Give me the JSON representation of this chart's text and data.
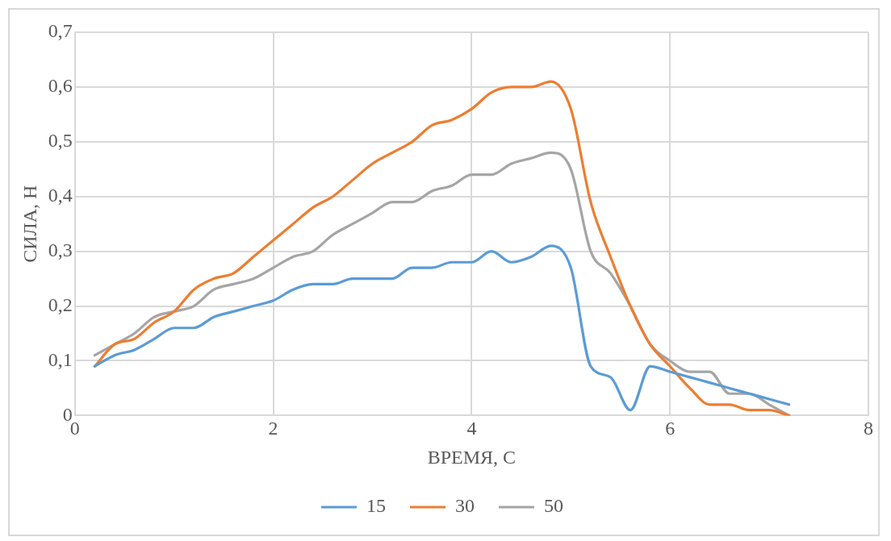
{
  "chart_data": {
    "type": "line",
    "xlabel": "ВРЕМЯ, С",
    "ylabel": "СИЛА, Н",
    "x": [
      0.2,
      0.4,
      0.6,
      0.8,
      1.0,
      1.2,
      1.4,
      1.6,
      1.8,
      2.0,
      2.2,
      2.4,
      2.6,
      2.8,
      3.0,
      3.2,
      3.4,
      3.6,
      3.8,
      4.0,
      4.2,
      4.4,
      4.6,
      4.8,
      5.0,
      5.2,
      5.4,
      5.6,
      5.8,
      6.0,
      6.2,
      6.4,
      6.6,
      6.8,
      7.0,
      7.2
    ],
    "series": [
      {
        "name": "15",
        "color": "#5b9bd5",
        "values": [
          0.09,
          0.11,
          0.12,
          0.14,
          0.16,
          0.16,
          0.18,
          0.19,
          0.2,
          0.21,
          0.23,
          0.24,
          0.24,
          0.25,
          0.25,
          0.25,
          0.27,
          0.27,
          0.28,
          0.28,
          0.3,
          0.28,
          0.29,
          0.31,
          0.27,
          0.09,
          0.07,
          0.01,
          0.09,
          0.08,
          0.07,
          0.06,
          0.05,
          0.04,
          0.03,
          0.02
        ]
      },
      {
        "name": "30",
        "color": "#ed7d31",
        "values": [
          0.09,
          0.13,
          0.14,
          0.17,
          0.19,
          0.23,
          0.25,
          0.26,
          0.29,
          0.32,
          0.35,
          0.38,
          0.4,
          0.43,
          0.46,
          0.48,
          0.5,
          0.53,
          0.54,
          0.56,
          0.59,
          0.6,
          0.6,
          0.61,
          0.56,
          0.39,
          0.29,
          0.2,
          0.13,
          0.09,
          0.05,
          0.02,
          0.02,
          0.01,
          0.01,
          0.0
        ]
      },
      {
        "name": "50",
        "color": "#a5a5a5",
        "values": [
          0.11,
          0.13,
          0.15,
          0.18,
          0.19,
          0.2,
          0.23,
          0.24,
          0.25,
          0.27,
          0.29,
          0.3,
          0.33,
          0.35,
          0.37,
          0.39,
          0.39,
          0.41,
          0.42,
          0.44,
          0.44,
          0.46,
          0.47,
          0.48,
          0.45,
          0.3,
          0.26,
          0.2,
          0.13,
          0.1,
          0.08,
          0.08,
          0.04,
          0.04,
          0.02,
          0.0
        ]
      }
    ],
    "xlim": [
      0,
      8
    ],
    "xticks": [
      0,
      2,
      4,
      6,
      8
    ],
    "ylim": [
      0,
      0.7
    ],
    "yticks": [
      0,
      {
        "value": 0.1,
        "label": "0,1"
      },
      {
        "value": 0.2,
        "label": "0,2"
      },
      {
        "value": 0.3,
        "label": "0,3"
      },
      {
        "value": 0.4,
        "label": "0,4"
      },
      {
        "value": 0.5,
        "label": "0,5"
      },
      {
        "value": 0.6,
        "label": "0,6"
      },
      {
        "value": 0.7,
        "label": "0,7"
      }
    ],
    "grid": true,
    "legend": "bottom",
    "marker": "none",
    "line_style": "solid"
  }
}
